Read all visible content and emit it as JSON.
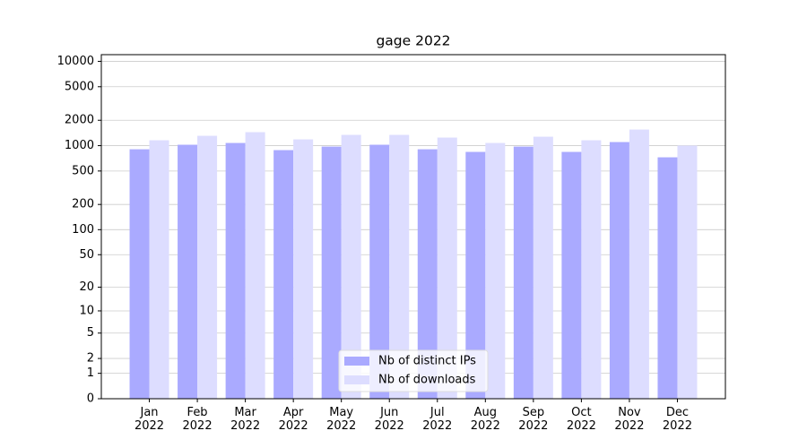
{
  "chart_data": {
    "type": "bar",
    "title": "gage 2022",
    "scale": "log1p",
    "categories": [
      "Jan\n2022",
      "Feb\n2022",
      "Mar\n2022",
      "Apr\n2022",
      "May\n2022",
      "Jun\n2022",
      "Jul\n2022",
      "Aug\n2022",
      "Sep\n2022",
      "Oct\n2022",
      "Nov\n2022",
      "Dec\n2022"
    ],
    "series": [
      {
        "name": "Nb of distinct IPs",
        "color": "#aaaaff",
        "values": [
          906,
          1025,
          1076,
          885,
          975,
          1025,
          906,
          843,
          975,
          843,
          1103,
          727
        ]
      },
      {
        "name": "Nb of downloads",
        "color": "#ddddff",
        "values": [
          1158,
          1309,
          1445,
          1187,
          1342,
          1342,
          1247,
          1076,
          1277,
          1158,
          1552,
          1000
        ]
      }
    ],
    "ylim": [
      0,
      12000
    ],
    "yticks": [
      0,
      1,
      2,
      5,
      10,
      20,
      50,
      100,
      200,
      500,
      1000,
      2000,
      5000,
      10000
    ],
    "grid": true,
    "legend": "lower center"
  }
}
